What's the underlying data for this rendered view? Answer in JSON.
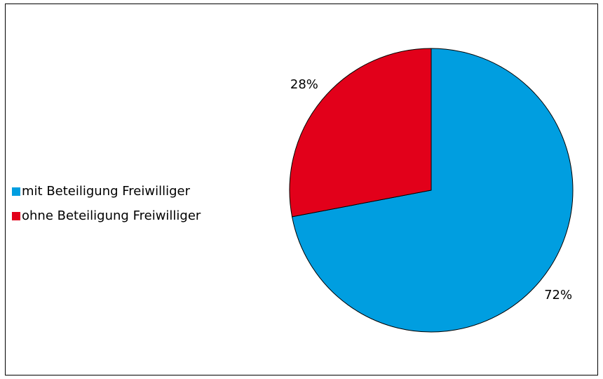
{
  "chart_data": {
    "type": "pie",
    "categories": [
      "mit Beteiligung Freiwilliger",
      "ohne Beteiligung Freiwilliger"
    ],
    "values": [
      72,
      28
    ],
    "value_labels": [
      "72%",
      "28%"
    ],
    "colors": [
      "#009ee0",
      "#e2001a"
    ]
  }
}
